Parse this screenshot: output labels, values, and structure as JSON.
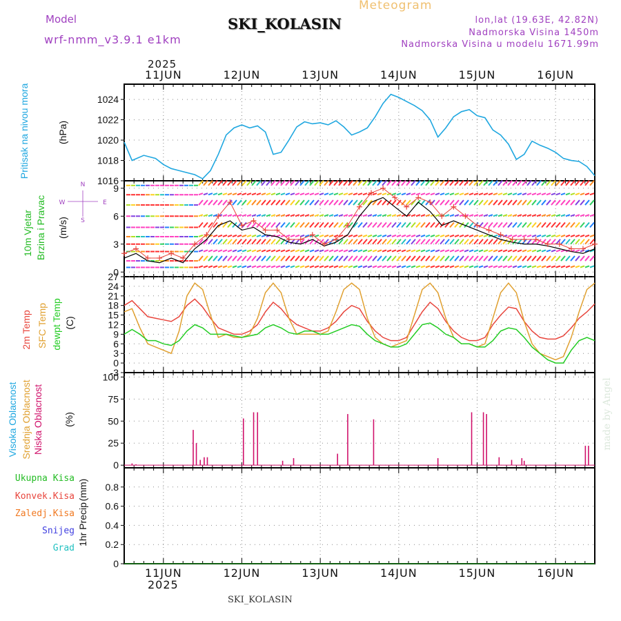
{
  "header": {
    "model_label": "Model",
    "model_name": "wrf-nmm_v3.9.1 e1km",
    "station": "SKI_KOLASIN",
    "title": "Meteogram",
    "lonlat": "lon,lat (19.63E, 42.82N)",
    "elevation": "Nadmorska Visina 1450m",
    "model_elevation": "Nadmorska Visina u modelu 1671.99m",
    "year_top": "2025",
    "year_bottom": "2025",
    "footer_station": "SKI_KOLASIN",
    "credit": "made by Angel"
  },
  "colors": {
    "pressure": "#1fa7e0",
    "wind_label": "#22bb22",
    "temp2m": "#e8453c",
    "sfc": "#e0a030",
    "dewpt": "#22cc22",
    "cloud_high": "#1fa7e0",
    "cloud_mid": "#e0a030",
    "cloud_low": "#d0106a",
    "compass": "#a040c0",
    "grid": "#888888"
  },
  "chart_data": [
    {
      "type": "line",
      "panel": "pressure",
      "ylabel_title": "Pritisak na nivou mora",
      "ylabel_unit": "(hPa)",
      "ylim": [
        1016,
        1025.5
      ],
      "yticks": [
        "1016",
        "1018",
        "1020",
        "1022",
        "1024"
      ],
      "xlim": [
        10.5,
        16.5
      ],
      "xtick_labels": [
        "11JUN",
        "12JUN",
        "13JUN",
        "14JUN",
        "15JUN",
        "16JUN"
      ],
      "grid": true,
      "x": [
        10.5,
        10.6,
        10.75,
        10.9,
        11.0,
        11.1,
        11.25,
        11.4,
        11.5,
        11.6,
        11.7,
        11.8,
        11.9,
        12.0,
        12.1,
        12.2,
        12.3,
        12.4,
        12.5,
        12.6,
        12.7,
        12.8,
        12.9,
        13.0,
        13.1,
        13.2,
        13.3,
        13.4,
        13.5,
        13.6,
        13.7,
        13.8,
        13.9,
        14.0,
        14.1,
        14.2,
        14.3,
        14.4,
        14.5,
        14.6,
        14.7,
        14.8,
        14.9,
        15.0,
        15.1,
        15.2,
        15.3,
        15.4,
        15.5,
        15.6,
        15.7,
        15.8,
        15.9,
        16.0,
        16.1,
        16.2,
        16.3,
        16.4,
        16.5
      ],
      "y": [
        1019.8,
        1018.0,
        1018.5,
        1018.2,
        1017.6,
        1017.2,
        1016.9,
        1016.6,
        1016.2,
        1017.0,
        1018.6,
        1020.5,
        1021.2,
        1021.5,
        1021.2,
        1021.4,
        1020.8,
        1018.6,
        1018.8,
        1020.0,
        1021.3,
        1021.8,
        1021.6,
        1021.7,
        1021.5,
        1021.9,
        1021.3,
        1020.5,
        1020.8,
        1021.2,
        1022.3,
        1023.6,
        1024.5,
        1024.2,
        1023.8,
        1023.4,
        1022.9,
        1022.0,
        1020.3,
        1021.2,
        1022.3,
        1022.8,
        1023.0,
        1022.4,
        1022.2,
        1021.0,
        1020.5,
        1019.6,
        1018.1,
        1018.6,
        1019.9,
        1019.5,
        1019.2,
        1018.8,
        1018.2,
        1018.0,
        1017.9,
        1017.4,
        1016.5
      ],
      "series": [
        {
          "name": "",
          "color": "#1fa7e0"
        }
      ]
    },
    {
      "type": "line",
      "panel": "wind",
      "ylabel_title": "10m Vjetar",
      "ylabel_title2": "Brzina i Pravac",
      "ylabel_unit": "(m/s)",
      "compass": [
        "N",
        "W",
        "E",
        "S"
      ],
      "ylim": [
        -0.5,
        9.8
      ],
      "yticks": [
        "0",
        "3",
        "6",
        "9"
      ],
      "xlim": [
        10.5,
        16.5
      ],
      "grid": true,
      "x": [
        10.5,
        10.65,
        10.8,
        10.95,
        11.1,
        11.25,
        11.4,
        11.55,
        11.7,
        11.85,
        12.0,
        12.15,
        12.3,
        12.45,
        12.6,
        12.75,
        12.9,
        13.05,
        13.2,
        13.35,
        13.5,
        13.65,
        13.8,
        13.95,
        14.1,
        14.25,
        14.4,
        14.55,
        14.7,
        14.85,
        15.0,
        15.15,
        15.3,
        15.45,
        15.6,
        15.75,
        15.9,
        16.05,
        16.2,
        16.35,
        16.5
      ],
      "speed": [
        1.5,
        2.0,
        1.2,
        1.0,
        1.5,
        1.0,
        2.5,
        3.5,
        5.0,
        5.5,
        4.5,
        4.8,
        4.0,
        3.8,
        3.2,
        3.0,
        3.5,
        2.8,
        3.2,
        4.0,
        6.0,
        7.5,
        8.0,
        7.0,
        6.0,
        7.5,
        6.5,
        5.0,
        5.5,
        5.0,
        4.5,
        4.0,
        3.5,
        3.2,
        3.0,
        3.0,
        2.8,
        2.5,
        2.2,
        2.0,
        2.5
      ],
      "gust": [
        2.0,
        2.5,
        1.5,
        1.5,
        2.0,
        1.5,
        3.0,
        4.0,
        6.0,
        7.5,
        5.0,
        5.5,
        4.5,
        4.5,
        3.5,
        3.5,
        4.0,
        3.0,
        3.5,
        5.0,
        7.0,
        8.5,
        9.0,
        8.0,
        7.0,
        8.0,
        7.5,
        6.0,
        7.0,
        6.0,
        5.0,
        4.5,
        4.0,
        3.5,
        3.5,
        3.5,
        3.0,
        3.0,
        2.5,
        2.5,
        3.0
      ],
      "series": [
        {
          "name": "",
          "color": "#000000"
        },
        {
          "name": "",
          "color": "#e8453c"
        }
      ]
    },
    {
      "type": "line",
      "panel": "temperature",
      "ylabel_title": "2m Temp",
      "ylabel_title2": "SFC Temp",
      "ylabel_title3": "dewpt Temp",
      "ylabel_unit": "(C)",
      "ylim": [
        -3,
        27
      ],
      "yticks": [
        "-3",
        "0",
        "3",
        "6",
        "9",
        "12",
        "15",
        "18",
        "21",
        "24",
        "27"
      ],
      "xlim": [
        10.5,
        16.5
      ],
      "grid": true,
      "x": [
        10.5,
        10.6,
        10.7,
        10.8,
        10.9,
        11.0,
        11.1,
        11.2,
        11.3,
        11.4,
        11.5,
        11.6,
        11.7,
        11.8,
        11.9,
        12.0,
        12.1,
        12.2,
        12.3,
        12.4,
        12.5,
        12.6,
        12.7,
        12.8,
        12.9,
        13.0,
        13.1,
        13.2,
        13.3,
        13.4,
        13.5,
        13.6,
        13.7,
        13.8,
        13.9,
        14.0,
        14.1,
        14.2,
        14.3,
        14.4,
        14.5,
        14.6,
        14.7,
        14.8,
        14.9,
        15.0,
        15.1,
        15.2,
        15.3,
        15.4,
        15.5,
        15.6,
        15.7,
        15.8,
        15.9,
        16.0,
        16.1,
        16.2,
        16.3,
        16.4,
        16.5
      ],
      "series": [
        {
          "name": "",
          "color": "#e8453c",
          "values": [
            18,
            19.5,
            17,
            14.5,
            14,
            13.5,
            13,
            14.5,
            18,
            20,
            17.5,
            14,
            11,
            10,
            9,
            9,
            10,
            12,
            16,
            19,
            17,
            14,
            12,
            11,
            10,
            10,
            11,
            13,
            16,
            18,
            17,
            13,
            10,
            8,
            7,
            7,
            8,
            12,
            16,
            19,
            17,
            13,
            10,
            8,
            7,
            7,
            8,
            12,
            15,
            17.5,
            17,
            13,
            10,
            8,
            7.5,
            7.5,
            8.5,
            11,
            14,
            16,
            18.5
          ]
        },
        {
          "name": "",
          "color": "#e0a030",
          "values": [
            16,
            17,
            11,
            6,
            5,
            4,
            3,
            10,
            21,
            25,
            23,
            15,
            8,
            9,
            8,
            8,
            9,
            14,
            22,
            25,
            22,
            14,
            9,
            9,
            9,
            9,
            10,
            16,
            23,
            25,
            23,
            14,
            8,
            6,
            5,
            6,
            7,
            15,
            23,
            25,
            22,
            14,
            8,
            6,
            6,
            5,
            6,
            14,
            22,
            25,
            22,
            13,
            6,
            3,
            2,
            1,
            2,
            8,
            16,
            23,
            25
          ]
        },
        {
          "name": "",
          "color": "#22cc22",
          "values": [
            9,
            10.5,
            9,
            7,
            7,
            6,
            5.5,
            7,
            10,
            12,
            11,
            9,
            9,
            9,
            8.5,
            8,
            8.5,
            9,
            11,
            12,
            11,
            9.5,
            9,
            10,
            10,
            9,
            9,
            10,
            11,
            12,
            11.5,
            9,
            7,
            6,
            5,
            5,
            6,
            9,
            12,
            12.5,
            11,
            9,
            8,
            6,
            6,
            5,
            5,
            7,
            10,
            11,
            10.5,
            8,
            5,
            3,
            1,
            0,
            0,
            4,
            7,
            8,
            7
          ]
        }
      ]
    },
    {
      "type": "bar",
      "panel": "cloud",
      "ylabel_title": "Visoka Oblacnost",
      "ylabel_title2": "Srednja Oblacnost",
      "ylabel_title3": "Niska Oblacnost",
      "ylabel_unit": "(%)",
      "ylim": [
        -3,
        105
      ],
      "yticks": [
        "0",
        "25",
        "50",
        "75",
        "100"
      ],
      "xlim": [
        10.5,
        16.5
      ],
      "grid": true,
      "x": [
        10.6,
        10.65,
        11.38,
        11.42,
        11.47,
        11.52,
        11.56,
        12.02,
        12.15,
        12.2,
        12.52,
        12.66,
        13.22,
        13.35,
        13.68,
        14.5,
        14.93,
        15.08,
        15.12,
        15.28,
        15.44,
        15.57,
        15.6,
        16.38,
        16.42
      ],
      "values": [
        2,
        1,
        40,
        25,
        6,
        9,
        9,
        53,
        60,
        60,
        5,
        8,
        13,
        58,
        52,
        8,
        60,
        60,
        58,
        9,
        6,
        8,
        5,
        22,
        22
      ],
      "series": [
        {
          "name": "",
          "color": "#d0106a"
        }
      ]
    },
    {
      "type": "line",
      "panel": "precip",
      "legend": [
        "Ukupna Kisa",
        "Konvek.Kisa",
        "Zaledj.Kisa",
        "Snijeg",
        "Grad"
      ],
      "legend_colors": [
        "#22bb22",
        "#e8453c",
        "#f07820",
        "#4040e0",
        "#20c0c0"
      ],
      "ylabel_title": "1hr Precip",
      "ylabel_unit": "(mm)",
      "ylim": [
        0,
        1.0
      ],
      "yticks": [
        "0",
        "0.2",
        "0.4",
        "0.6",
        "0.8"
      ],
      "xlim": [
        10.5,
        16.5
      ],
      "grid": true,
      "x": [
        10.5,
        16.5
      ],
      "y": [
        0,
        0
      ]
    }
  ]
}
